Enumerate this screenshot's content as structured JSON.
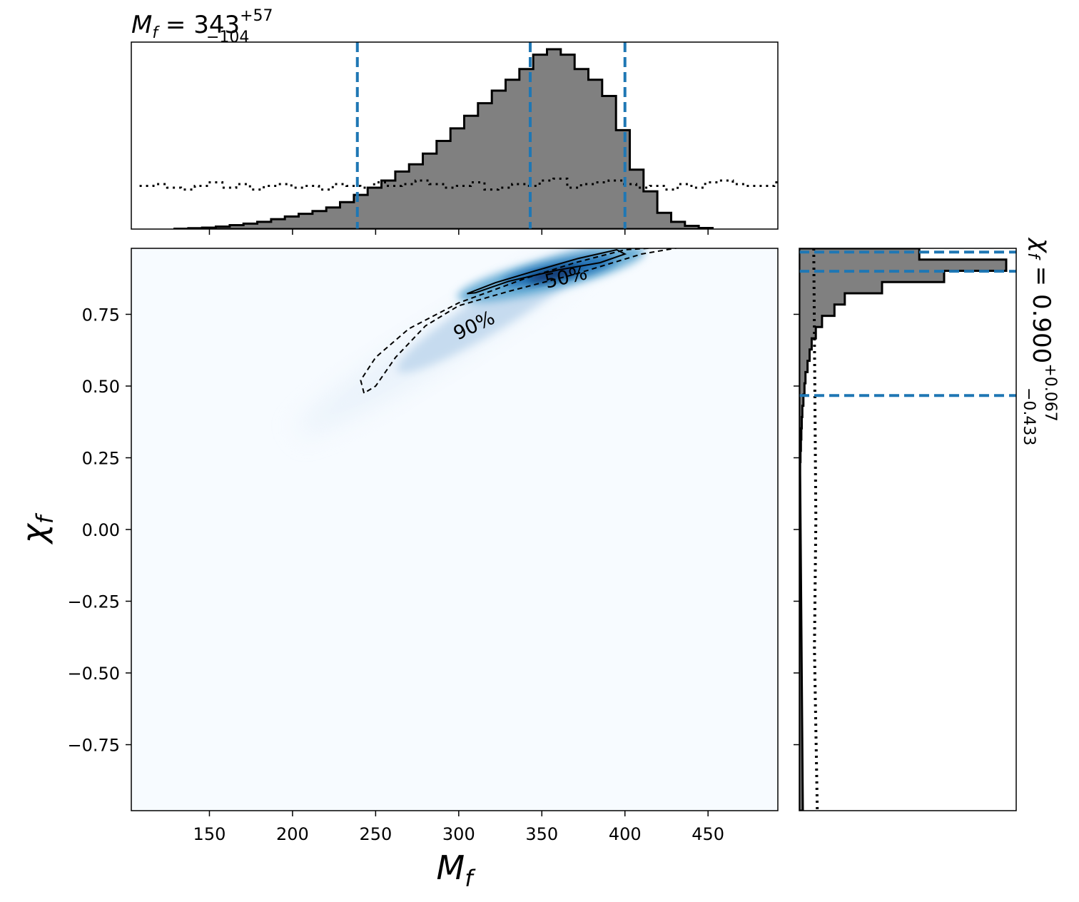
{
  "chart_data": {
    "type": "corner",
    "top_title": {
      "main": "M",
      "sub": "f",
      "eq": " = 343",
      "sup": "+57",
      "subscript": "−104"
    },
    "right_title": {
      "main": "χ",
      "sub": "f",
      "eq": " = 0.900",
      "sup": "+0.067",
      "subscript": "−0.433"
    },
    "xlabel": {
      "main": "M",
      "sub": "f"
    },
    "ylabel": {
      "main": "χ",
      "sub": "f"
    },
    "xlim": [
      103,
      492
    ],
    "ylim": [
      -0.98,
      0.98
    ],
    "x_ticks": [
      150,
      200,
      250,
      300,
      350,
      400,
      450
    ],
    "x_tick_labels": [
      "150",
      "200",
      "250",
      "300",
      "350",
      "400",
      "450"
    ],
    "y_ticks": [
      0.75,
      0.5,
      0.25,
      0.0,
      -0.25,
      -0.5,
      -0.75
    ],
    "y_tick_labels": [
      "0.75",
      "0.50",
      "0.25",
      "0.00",
      "−0.25",
      "−0.50",
      "−0.75"
    ],
    "mf_credible": {
      "lower": 239,
      "median": 343,
      "upper": 400
    },
    "chi_credible": {
      "lower": 0.467,
      "median": 0.9,
      "upper": 0.967
    },
    "mf_hist": {
      "bin_width": 8.3,
      "bin_starts": [
        129,
        137.3,
        145.6,
        153.9,
        162.2,
        170.5,
        178.8,
        187.1,
        195.4,
        203.7,
        212.0,
        220.3,
        228.6,
        236.9,
        245.2,
        253.5,
        261.8,
        270.1,
        278.4,
        286.7,
        295.0,
        303.3,
        311.6,
        319.9,
        328.2,
        336.5,
        344.8,
        353.1,
        361.4,
        369.7,
        378.0,
        386.3,
        394.6,
        402.9,
        411.2,
        419.5,
        427.8,
        436.1,
        444.4
      ],
      "density": [
        0.002,
        0.005,
        0.008,
        0.014,
        0.022,
        0.03,
        0.04,
        0.055,
        0.07,
        0.085,
        0.1,
        0.12,
        0.15,
        0.19,
        0.23,
        0.27,
        0.32,
        0.36,
        0.42,
        0.49,
        0.56,
        0.63,
        0.7,
        0.77,
        0.83,
        0.89,
        0.97,
        1.0,
        0.97,
        0.89,
        0.83,
        0.74,
        0.55,
        0.33,
        0.21,
        0.09,
        0.04,
        0.018,
        0.006
      ]
    },
    "mf_prior": {
      "x_start": 108,
      "x_step": 8.3,
      "density": [
        0.24,
        0.25,
        0.23,
        0.22,
        0.24,
        0.26,
        0.23,
        0.25,
        0.22,
        0.24,
        0.25,
        0.23,
        0.24,
        0.22,
        0.25,
        0.24,
        0.23,
        0.26,
        0.24,
        0.25,
        0.27,
        0.25,
        0.23,
        0.24,
        0.26,
        0.22,
        0.23,
        0.25,
        0.24,
        0.27,
        0.28,
        0.23,
        0.25,
        0.26,
        0.27,
        0.25,
        0.23,
        0.24,
        0.22,
        0.25,
        0.23,
        0.26,
        0.27,
        0.25,
        0.24,
        0.24,
        0.26,
        0.25
      ]
    },
    "chi_hist": {
      "bin_width": 0.0392,
      "bin_edges_top": [
        0.98,
        0.9408,
        0.9016,
        0.8624,
        0.8232,
        0.784,
        0.7448,
        0.7056,
        0.6664,
        0.6272,
        0.588,
        0.5488,
        0.5096,
        0.4704,
        0.4312,
        0.392,
        0.3528,
        0.3136,
        0.2744,
        0.2352
      ],
      "density": [
        0.58,
        1.0,
        0.7,
        0.4,
        0.22,
        0.17,
        0.11,
        0.08,
        0.06,
        0.05,
        0.04,
        0.03,
        0.025,
        0.02,
        0.015,
        0.012,
        0.01,
        0.008,
        0.006,
        0.004
      ]
    },
    "chi_prior_x_frac": 0.07,
    "joint_peak": {
      "mf": 360,
      "chi": 0.9
    },
    "contour_labels": [
      "50%",
      "90%"
    ],
    "colors": {
      "hist_fill": "#808080",
      "line": "#000000",
      "credible": "#1f77b4",
      "cmap_low": "#f7fbff",
      "cmap_high": "#08306b"
    }
  }
}
